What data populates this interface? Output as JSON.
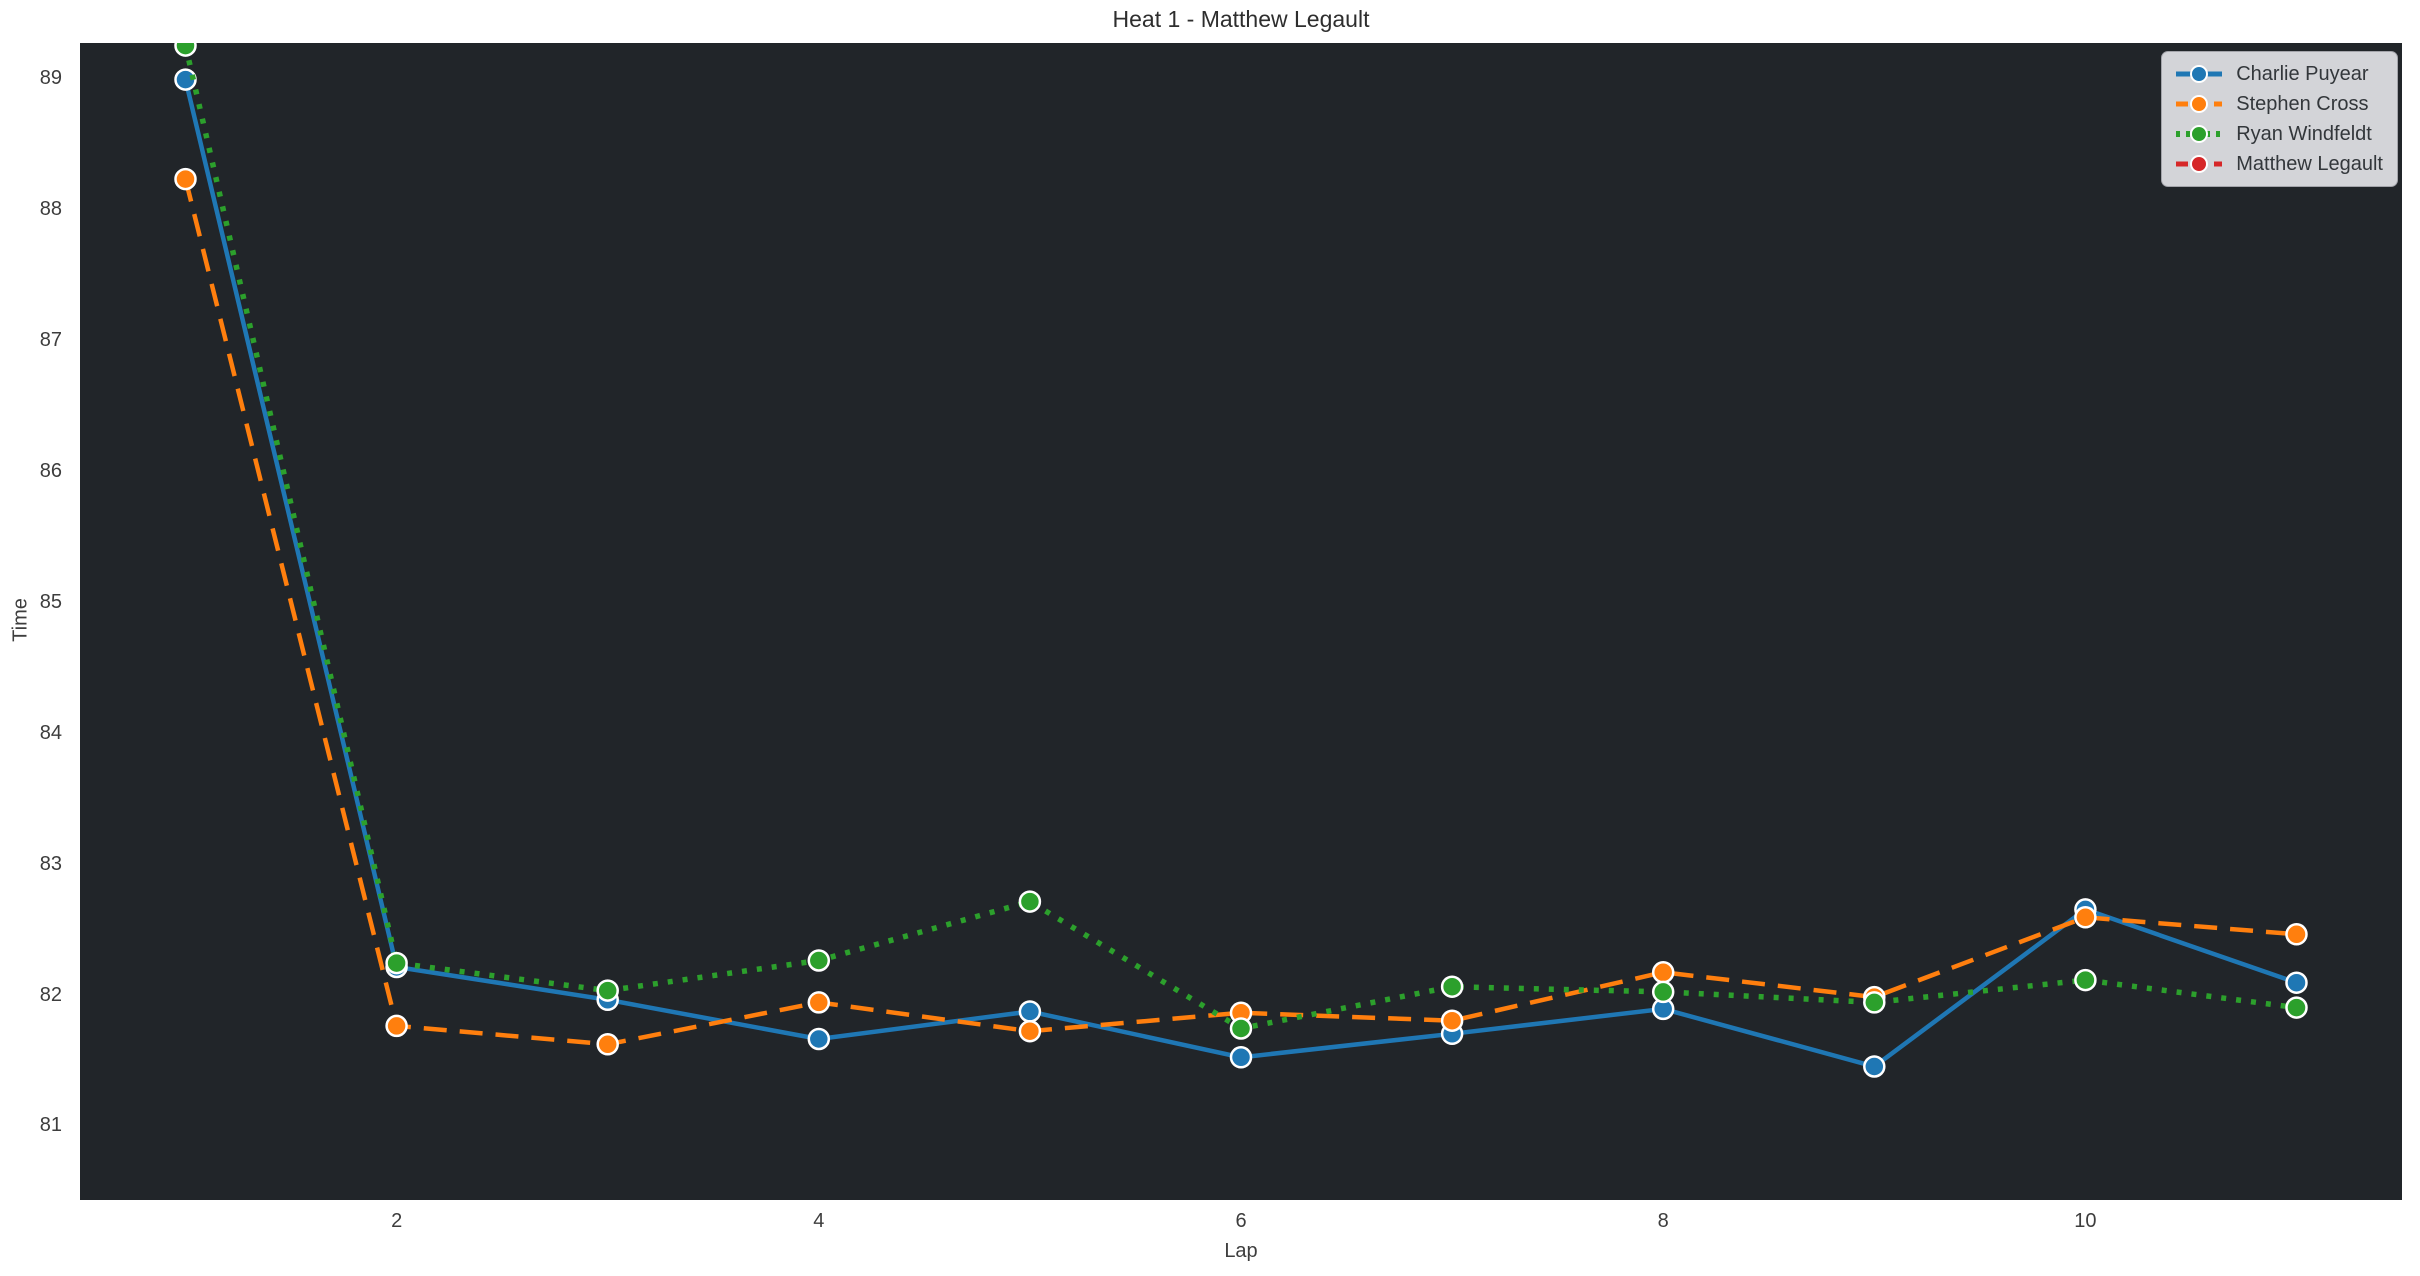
{
  "figure": {
    "background_color": "#ffffff",
    "axes_background_color": "#212529",
    "text_color": "#3d3d3d",
    "marker_edge_color": "#ffffff"
  },
  "chart_data": {
    "type": "line",
    "title": "Heat 1 - Matthew Legault",
    "xlabel": "Lap",
    "ylabel": "Time",
    "x": [
      1,
      2,
      3,
      4,
      5,
      6,
      7,
      8,
      9,
      10,
      11
    ],
    "x_ticks": [
      2,
      4,
      6,
      8,
      10
    ],
    "y_ticks": [
      81,
      82,
      83,
      84,
      85,
      86,
      87,
      88,
      89
    ],
    "xlim": [
      0.5,
      11.5
    ],
    "ylim": [
      80.43,
      89.27
    ],
    "grid": false,
    "legend_position": "upper right",
    "series": [
      {
        "name": "Charlie Puyear",
        "color": "#1f77b4",
        "line_style": "solid",
        "values": [
          88.99,
          82.21,
          81.96,
          81.66,
          81.87,
          81.52,
          81.7,
          81.89,
          81.45,
          82.65,
          82.09
        ]
      },
      {
        "name": "Stephen Cross",
        "color": "#ff7f0e",
        "line_style": "dashed",
        "values": [
          88.23,
          81.76,
          81.62,
          81.94,
          81.72,
          81.86,
          81.8,
          82.17,
          81.98,
          82.59,
          82.46
        ]
      },
      {
        "name": "Ryan Windfeldt",
        "color": "#2ca02c",
        "line_style": "dotted",
        "values": [
          89.25,
          82.24,
          82.03,
          82.26,
          82.71,
          81.74,
          82.06,
          82.02,
          81.94,
          82.11,
          81.9
        ]
      },
      {
        "name": "Matthew Legault",
        "color": "#d62728",
        "line_style": "dashed",
        "values": []
      }
    ]
  }
}
